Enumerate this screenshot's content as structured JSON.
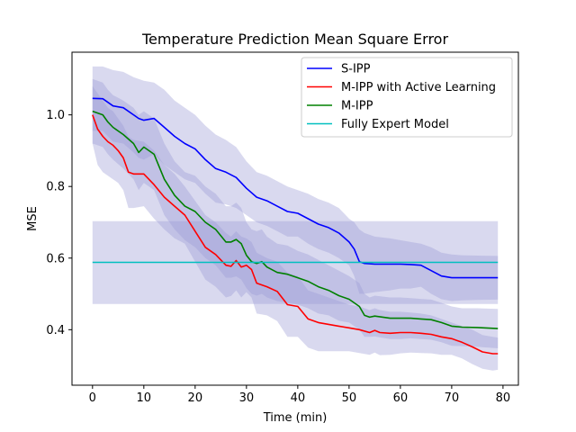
{
  "chart_data": {
    "type": "line",
    "title": "Temperature Prediction Mean Square Error",
    "xlabel": "Time (min)",
    "ylabel": "MSE",
    "xlim": [
      -4,
      83
    ],
    "ylim": [
      0.245,
      1.175
    ],
    "xticks": [
      0,
      10,
      20,
      30,
      40,
      50,
      60,
      70,
      80
    ],
    "yticks": [
      0.4,
      0.6,
      0.8,
      1.0
    ],
    "xtick_labels": [
      "0",
      "10",
      "20",
      "30",
      "40",
      "50",
      "60",
      "70",
      "80"
    ],
    "ytick_labels": [
      "0.4",
      "0.6",
      "0.8",
      "1.0"
    ],
    "legend_position": "top-right",
    "grid": false,
    "series": [
      {
        "name": "S-IPP",
        "color": "#0000ff",
        "x": [
          0,
          2,
          4,
          6,
          8,
          9,
          10,
          12,
          14,
          16,
          18,
          20,
          22,
          24,
          26,
          28,
          30,
          32,
          34,
          36,
          38,
          40,
          42,
          44,
          46,
          48,
          50,
          51,
          52,
          53,
          55,
          58,
          60,
          62,
          64,
          66,
          68,
          70,
          72,
          75,
          79
        ],
        "y": [
          1.046,
          1.045,
          1.025,
          1.02,
          1.0,
          0.99,
          0.985,
          0.99,
          0.965,
          0.94,
          0.92,
          0.905,
          0.875,
          0.85,
          0.84,
          0.825,
          0.795,
          0.77,
          0.76,
          0.745,
          0.73,
          0.725,
          0.71,
          0.695,
          0.685,
          0.67,
          0.645,
          0.625,
          0.59,
          0.585,
          0.583,
          0.583,
          0.583,
          0.582,
          0.58,
          0.565,
          0.55,
          0.545,
          0.545,
          0.545,
          0.545
        ],
        "band_upper": [
          1.135,
          1.135,
          1.125,
          1.12,
          1.105,
          1.1,
          1.095,
          1.09,
          1.07,
          1.04,
          1.02,
          1.0,
          0.97,
          0.945,
          0.93,
          0.91,
          0.87,
          0.84,
          0.83,
          0.815,
          0.8,
          0.79,
          0.78,
          0.765,
          0.755,
          0.74,
          0.71,
          0.7,
          0.68,
          0.67,
          0.66,
          0.655,
          0.65,
          0.645,
          0.64,
          0.63,
          0.615,
          0.61,
          0.608,
          0.607,
          0.606
        ],
        "band_lower": [
          0.955,
          0.955,
          0.925,
          0.92,
          0.895,
          0.88,
          0.875,
          0.89,
          0.86,
          0.84,
          0.82,
          0.81,
          0.78,
          0.755,
          0.75,
          0.74,
          0.72,
          0.7,
          0.69,
          0.675,
          0.66,
          0.66,
          0.64,
          0.625,
          0.615,
          0.6,
          0.58,
          0.55,
          0.5,
          0.5,
          0.505,
          0.51,
          0.515,
          0.515,
          0.52,
          0.5,
          0.485,
          0.48,
          0.482,
          0.483,
          0.484
        ]
      },
      {
        "name": "M-IPP with Active Learning",
        "color": "#ff0000",
        "x": [
          0,
          1,
          2,
          3,
          4,
          5,
          6,
          7,
          8,
          10,
          12,
          14,
          16,
          18,
          20,
          22,
          24,
          26,
          27,
          28,
          29,
          30,
          31,
          32,
          34,
          36,
          38,
          40,
          42,
          44,
          46,
          48,
          50,
          52,
          54,
          55,
          56,
          58,
          60,
          62,
          64,
          66,
          68,
          70,
          72,
          74,
          76,
          78,
          79
        ],
        "y": [
          1.0,
          0.96,
          0.94,
          0.925,
          0.915,
          0.9,
          0.88,
          0.84,
          0.835,
          0.835,
          0.805,
          0.77,
          0.745,
          0.72,
          0.675,
          0.63,
          0.61,
          0.58,
          0.577,
          0.593,
          0.575,
          0.58,
          0.568,
          0.53,
          0.52,
          0.507,
          0.47,
          0.465,
          0.43,
          0.42,
          0.415,
          0.41,
          0.405,
          0.4,
          0.392,
          0.398,
          0.392,
          0.39,
          0.392,
          0.392,
          0.39,
          0.387,
          0.38,
          0.375,
          0.365,
          0.352,
          0.338,
          0.333,
          0.333
        ],
        "band_upper": [
          1.08,
          1.06,
          1.04,
          1.02,
          1.01,
          0.99,
          0.97,
          0.94,
          0.93,
          0.925,
          0.9,
          0.86,
          0.835,
          0.8,
          0.76,
          0.72,
          0.7,
          0.67,
          0.66,
          0.675,
          0.66,
          0.655,
          0.645,
          0.615,
          0.6,
          0.59,
          0.56,
          0.55,
          0.51,
          0.5,
          0.49,
          0.48,
          0.47,
          0.465,
          0.455,
          0.46,
          0.455,
          0.45,
          0.45,
          0.448,
          0.445,
          0.44,
          0.43,
          0.42,
          0.41,
          0.4,
          0.385,
          0.38,
          0.378
        ],
        "band_lower": [
          0.92,
          0.86,
          0.84,
          0.83,
          0.82,
          0.81,
          0.79,
          0.74,
          0.74,
          0.745,
          0.71,
          0.68,
          0.655,
          0.64,
          0.59,
          0.54,
          0.52,
          0.49,
          0.494,
          0.51,
          0.49,
          0.505,
          0.49,
          0.445,
          0.44,
          0.424,
          0.38,
          0.38,
          0.35,
          0.34,
          0.34,
          0.34,
          0.34,
          0.335,
          0.33,
          0.336,
          0.329,
          0.33,
          0.334,
          0.336,
          0.335,
          0.334,
          0.33,
          0.33,
          0.32,
          0.304,
          0.291,
          0.286,
          0.288
        ]
      },
      {
        "name": "M-IPP",
        "color": "#008000",
        "x": [
          0,
          1,
          2,
          3,
          4,
          6,
          8,
          9,
          10,
          11,
          12,
          14,
          16,
          18,
          20,
          22,
          24,
          26,
          27,
          28,
          29,
          30,
          31,
          32,
          33,
          34,
          36,
          38,
          40,
          42,
          44,
          46,
          48,
          50,
          52,
          53,
          54,
          55,
          58,
          60,
          62,
          64,
          66,
          68,
          70,
          72,
          75,
          79
        ],
        "y": [
          1.01,
          1.005,
          1.0,
          0.98,
          0.965,
          0.945,
          0.92,
          0.895,
          0.91,
          0.9,
          0.89,
          0.82,
          0.775,
          0.745,
          0.73,
          0.7,
          0.68,
          0.645,
          0.645,
          0.652,
          0.64,
          0.608,
          0.59,
          0.585,
          0.59,
          0.575,
          0.56,
          0.555,
          0.545,
          0.535,
          0.52,
          0.51,
          0.495,
          0.485,
          0.465,
          0.44,
          0.435,
          0.438,
          0.432,
          0.432,
          0.432,
          0.43,
          0.428,
          0.42,
          0.41,
          0.407,
          0.406,
          0.403
        ],
        "band_upper": [
          1.1,
          1.095,
          1.09,
          1.07,
          1.055,
          1.04,
          1.02,
          1.0,
          1.01,
          1.0,
          0.99,
          0.92,
          0.87,
          0.84,
          0.83,
          0.8,
          0.78,
          0.745,
          0.745,
          0.755,
          0.74,
          0.7,
          0.68,
          0.675,
          0.68,
          0.66,
          0.64,
          0.635,
          0.62,
          0.61,
          0.595,
          0.58,
          0.565,
          0.55,
          0.53,
          0.5,
          0.49,
          0.495,
          0.49,
          0.49,
          0.488,
          0.486,
          0.484,
          0.475,
          0.465,
          0.46,
          0.46,
          0.458
        ],
        "band_lower": [
          0.92,
          0.915,
          0.91,
          0.89,
          0.875,
          0.85,
          0.82,
          0.79,
          0.81,
          0.8,
          0.79,
          0.72,
          0.68,
          0.65,
          0.63,
          0.6,
          0.58,
          0.545,
          0.545,
          0.549,
          0.54,
          0.516,
          0.5,
          0.495,
          0.5,
          0.49,
          0.48,
          0.475,
          0.47,
          0.46,
          0.445,
          0.44,
          0.425,
          0.42,
          0.4,
          0.38,
          0.38,
          0.381,
          0.374,
          0.374,
          0.376,
          0.374,
          0.372,
          0.365,
          0.355,
          0.354,
          0.352,
          0.348
        ]
      },
      {
        "name": "Fully Expert Model",
        "color": "#00bfbf",
        "x": [
          0,
          79
        ],
        "y": [
          0.588,
          0.588
        ],
        "band_upper": [
          0.703,
          0.703
        ],
        "band_lower": [
          0.472,
          0.472
        ]
      }
    ],
    "band_color": "#9b9bd6"
  }
}
